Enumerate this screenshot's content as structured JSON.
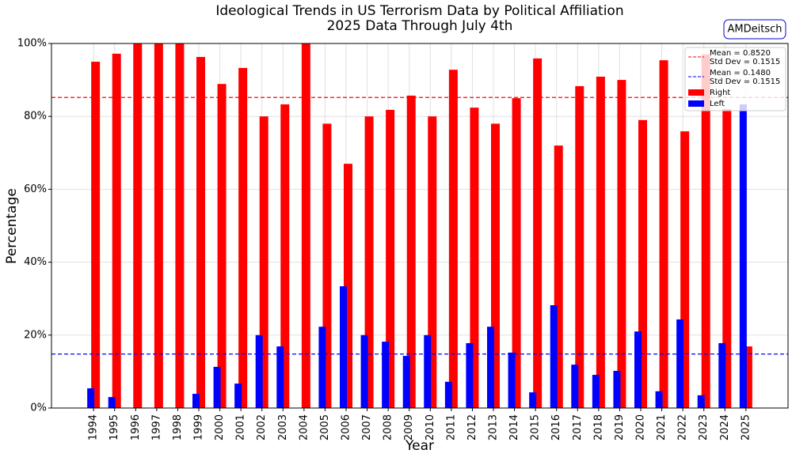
{
  "chart_data": {
    "type": "bar",
    "title": "Ideological Trends in US Terrorism Data by Political Affiliation",
    "subtitle": "2025 Data Through July 4th",
    "x_label": "Year",
    "y_label": "Percentage",
    "watermark": "AMDeitsch",
    "categories": [
      "1994",
      "1995",
      "1996",
      "1997",
      "1998",
      "1999",
      "2000",
      "2001",
      "2002",
      "2003",
      "2004",
      "2005",
      "2006",
      "2007",
      "2008",
      "2009",
      "2010",
      "2011",
      "2012",
      "2013",
      "2014",
      "2015",
      "2016",
      "2017",
      "2018",
      "2019",
      "2020",
      "2021",
      "2022",
      "2023",
      "2024",
      "2025"
    ],
    "series": [
      {
        "name": "Right",
        "color": "#ff0000",
        "values": [
          95,
          97.2,
          100,
          100,
          100,
          96.3,
          88.9,
          93.3,
          80,
          83.3,
          100,
          78,
          67,
          80,
          81.8,
          85.7,
          80,
          92.8,
          82.4,
          78,
          85,
          95.9,
          72,
          88.3,
          90.9,
          90,
          79,
          95.4,
          75.9,
          97,
          82,
          16.9
        ]
      },
      {
        "name": "Left",
        "color": "#0000ff",
        "values": [
          5.4,
          3,
          0,
          0,
          0,
          3.9,
          11.3,
          6.7,
          20,
          16.9,
          0,
          22.3,
          33.4,
          20,
          18.2,
          14.3,
          20,
          7.2,
          17.8,
          22.3,
          15.2,
          4.3,
          28.2,
          11.9,
          9.1,
          10.2,
          21,
          4.6,
          24.3,
          3.5,
          17.8,
          83.3
        ]
      }
    ],
    "reference_lines": [
      {
        "lines": [
          "Mean = 0.8520",
          "Std Dev = 0.1515"
        ],
        "value": 85.2,
        "color": "#ff0000"
      },
      {
        "lines": [
          "Mean = 0.1480",
          "Std Dev = 0.1515"
        ],
        "value": 14.8,
        "color": "#0000ff"
      }
    ],
    "ylim": [
      0,
      100
    ],
    "yticks": [
      {
        "value": 0,
        "label": "0%"
      },
      {
        "value": 20,
        "label": "20%"
      },
      {
        "value": 40,
        "label": "40%"
      },
      {
        "value": 60,
        "label": "60%"
      },
      {
        "value": 80,
        "label": "80%"
      },
      {
        "value": 100,
        "label": "100%"
      }
    ],
    "grid": true,
    "legend": "upper right"
  }
}
